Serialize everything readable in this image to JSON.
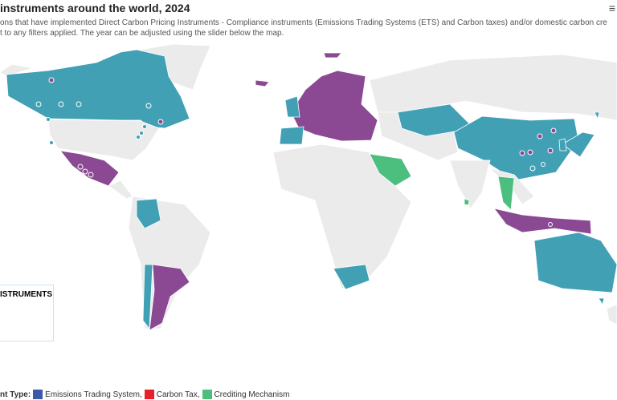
{
  "header": {
    "title": "instruments around the world, 2024",
    "subtitle_lines": [
      "ons that have implemented Direct Carbon Pricing Instruments - Compliance instruments (Emissions Trading Systems (ETS) and Carbon taxes) and/or domestic carbon cre",
      "t to any filters applied. The year can be adjusted using the slider below the map."
    ],
    "menu": "≡"
  },
  "legend_box": {
    "title": "ISTRUMENTS"
  },
  "footer_legend": {
    "label": "nt Type:",
    "items": [
      "Emissions Trading System,",
      "Carbon Tax,",
      "Crediting Mechanism"
    ]
  }
}
